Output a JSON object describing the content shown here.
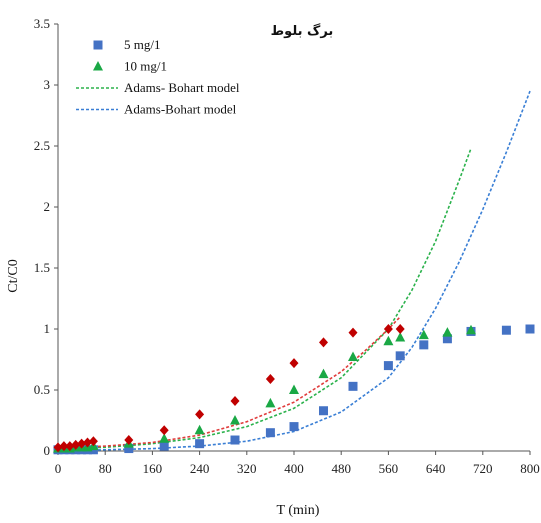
{
  "chart_data": {
    "type": "scatter",
    "title": "برگ بلوط",
    "xlabel": "T (min)",
    "ylabel": "Ct/C0",
    "xlim": [
      0,
      800
    ],
    "ylim": [
      0,
      3.5
    ],
    "x_ticks": [
      "0",
      "80",
      "160",
      "240",
      "320",
      "400",
      "480",
      "560",
      "640",
      "720",
      "800"
    ],
    "y_ticks": [
      "0",
      "0.5",
      "1",
      "1.5",
      "2",
      "2.5",
      "3",
      "3.5"
    ],
    "grid": false,
    "legend_position": "top-left",
    "series": [
      {
        "name": "5 mg/1",
        "kind": "scatter",
        "marker": "square",
        "color": "#4472c4",
        "x": [
          0,
          10,
          20,
          30,
          40,
          50,
          60,
          120,
          180,
          240,
          300,
          360,
          400,
          450,
          500,
          560,
          580,
          620,
          660,
          700,
          760,
          800
        ],
        "y": [
          0.01,
          0.01,
          0.01,
          0.01,
          0.01,
          0.01,
          0.01,
          0.02,
          0.04,
          0.06,
          0.09,
          0.15,
          0.2,
          0.33,
          0.53,
          0.7,
          0.78,
          0.87,
          0.92,
          0.98,
          0.99,
          1.0
        ]
      },
      {
        "name": "10 mg/1",
        "kind": "scatter",
        "marker": "triangle",
        "color": "#1aa845",
        "x": [
          0,
          10,
          20,
          30,
          40,
          50,
          60,
          120,
          180,
          240,
          300,
          360,
          400,
          450,
          500,
          560,
          580,
          620,
          660,
          700
        ],
        "y": [
          0.02,
          0.02,
          0.02,
          0.03,
          0.03,
          0.03,
          0.04,
          0.06,
          0.1,
          0.17,
          0.25,
          0.39,
          0.5,
          0.63,
          0.77,
          0.9,
          0.93,
          0.95,
          0.97,
          0.99
        ]
      },
      {
        "name": "",
        "kind": "scatter",
        "marker": "diamond",
        "color": "#c00000",
        "x": [
          0,
          10,
          20,
          30,
          40,
          50,
          60,
          120,
          180,
          240,
          300,
          360,
          400,
          450,
          500,
          560,
          580
        ],
        "y": [
          0.03,
          0.04,
          0.04,
          0.05,
          0.06,
          0.07,
          0.08,
          0.09,
          0.17,
          0.3,
          0.41,
          0.59,
          0.72,
          0.89,
          0.97,
          1.0,
          1.0
        ]
      },
      {
        "name": "Adams- Bohart model",
        "kind": "dashed-line",
        "color": "#2bb24c",
        "x": [
          0,
          80,
          160,
          240,
          320,
          400,
          480,
          560,
          600,
          640,
          680,
          700
        ],
        "y": [
          0.02,
          0.03,
          0.06,
          0.11,
          0.2,
          0.35,
          0.6,
          1.0,
          1.32,
          1.72,
          2.22,
          2.48
        ]
      },
      {
        "name": "",
        "kind": "dashed-line",
        "color": "#e03c3c",
        "x": [
          0,
          80,
          160,
          240,
          320,
          400,
          480,
          520,
          560,
          580
        ],
        "y": [
          0.02,
          0.04,
          0.07,
          0.13,
          0.24,
          0.4,
          0.65,
          0.82,
          1.0,
          1.1
        ]
      },
      {
        "name": "Adams-Bohart model",
        "kind": "dashed-line",
        "color": "#3a7fd5",
        "x": [
          0,
          80,
          160,
          240,
          320,
          400,
          480,
          560,
          600,
          640,
          680,
          720,
          760,
          800
        ],
        "y": [
          0.0,
          0.01,
          0.02,
          0.04,
          0.08,
          0.16,
          0.32,
          0.6,
          0.85,
          1.17,
          1.55,
          1.98,
          2.45,
          2.95
        ]
      }
    ]
  }
}
